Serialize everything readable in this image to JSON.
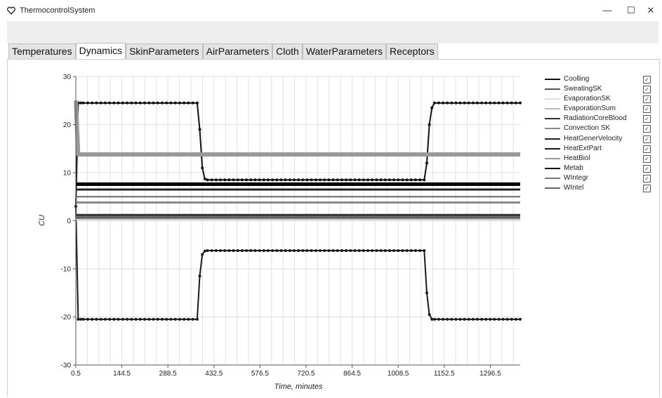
{
  "window": {
    "title": "ThermocontrolSystem",
    "minimize": "—",
    "maximize": "☐",
    "close": "✕"
  },
  "tabs": [
    {
      "label": "Temperatures",
      "active": false
    },
    {
      "label": "Dynamics",
      "active": true
    },
    {
      "label": "SkinParameters",
      "active": false
    },
    {
      "label": "AirParameters",
      "active": false
    },
    {
      "label": "Cloth",
      "active": false
    },
    {
      "label": "WaterParameters",
      "active": false
    },
    {
      "label": "Receptors",
      "active": false
    }
  ],
  "legend": [
    {
      "label": "Coolling",
      "color": "#111111",
      "checked": true
    },
    {
      "label": "SweatingSK",
      "color": "#555555",
      "checked": true
    },
    {
      "label": "EvaporationSK",
      "color": "#dddddd",
      "checked": true
    },
    {
      "label": "EvaporationSum",
      "color": "#bbbbbb",
      "checked": true
    },
    {
      "label": "RadiationCoreBlood",
      "color": "#333333",
      "checked": true
    },
    {
      "label": "Convection SK",
      "color": "#888888",
      "checked": true
    },
    {
      "label": "HeatGenerVelocity",
      "color": "#222222",
      "checked": true
    },
    {
      "label": "HeatExtPart",
      "color": "#1a1a1a",
      "checked": true
    },
    {
      "label": "HeatBiol",
      "color": "#999999",
      "checked": true
    },
    {
      "label": "Metab",
      "color": "#000000",
      "checked": true
    },
    {
      "label": "WIntegr",
      "color": "#777777",
      "checked": true
    },
    {
      "label": "WIntel",
      "color": "#666666",
      "checked": true
    }
  ],
  "chart_data": {
    "type": "line",
    "xlabel": "Time, minutes",
    "ylabel": "CU",
    "xlim": [
      0.5,
      1390
    ],
    "ylim": [
      -30,
      30
    ],
    "x_ticks": [
      "0.5",
      "144.5",
      "288.5",
      "432.5",
      "576.5",
      "720.5",
      "864.5",
      "1008.5",
      "1152.5",
      "1296.5"
    ],
    "y_ticks": [
      "30",
      "20",
      "10",
      "0",
      "-10",
      "-20",
      "-30"
    ],
    "grid": true,
    "legend_position": "right",
    "series": [
      {
        "name": "Coolling",
        "color": "#111111",
        "width": 2,
        "marker": true,
        "x": [
          0.5,
          8,
          16,
          24,
          380,
          388,
          396,
          404,
          412,
          1090,
          1098,
          1106,
          1114,
          1122,
          1390
        ],
        "y": [
          3,
          24.5,
          24.5,
          24.5,
          24.5,
          19,
          11,
          8.7,
          8.5,
          8.5,
          12,
          20,
          23.5,
          24.5,
          24.5
        ]
      },
      {
        "name": "HeatExtPart",
        "color": "#1a1a1a",
        "width": 2,
        "marker": true,
        "x": [
          0.5,
          8,
          16,
          24,
          380,
          388,
          396,
          404,
          412,
          1090,
          1098,
          1106,
          1114,
          1122,
          1390
        ],
        "y": [
          3,
          -20.5,
          -20.5,
          -20.5,
          -20.5,
          -11.5,
          -7,
          -6.3,
          -6.2,
          -6.2,
          -15,
          -19.5,
          -20.5,
          -20.5,
          -20.5
        ]
      },
      {
        "name": "HeatBiol",
        "color": "#999999",
        "width": 6,
        "marker": false,
        "x": [
          0.5,
          8,
          1390
        ],
        "y": [
          25,
          13.8,
          13.8
        ]
      },
      {
        "name": "Metab",
        "color": "#000000",
        "width": 5,
        "marker": false,
        "x": [
          0.5,
          8,
          1390
        ],
        "y": [
          7.6,
          7.6,
          7.6
        ]
      },
      {
        "name": "HeatGenerVelocity",
        "color": "#222222",
        "width": 3,
        "marker": false,
        "x": [
          0.5,
          8,
          1390
        ],
        "y": [
          6.5,
          6.5,
          6.5
        ]
      },
      {
        "name": "Convection SK",
        "color": "#888888",
        "width": 3,
        "marker": false,
        "x": [
          0.5,
          8,
          1390
        ],
        "y": [
          4,
          3.8,
          3.8
        ]
      },
      {
        "name": "WIntegr",
        "color": "#777777",
        "width": 6,
        "marker": false,
        "x": [
          0.5,
          8,
          1390
        ],
        "y": [
          0.9,
          0.9,
          0.9
        ]
      },
      {
        "name": "RadiationCoreBlood",
        "color": "#333333",
        "width": 3,
        "marker": false,
        "x": [
          0.5,
          8,
          1390
        ],
        "y": [
          1.2,
          1.2,
          1.2
        ]
      },
      {
        "name": "EvaporationSum",
        "color": "#bbbbbb",
        "width": 4,
        "marker": false,
        "x": [
          0.5,
          8,
          1390
        ],
        "y": [
          0.3,
          0.3,
          0.3
        ]
      },
      {
        "name": "EvaporationSK",
        "color": "#dddddd",
        "width": 2,
        "marker": false,
        "x": [
          0.5,
          8,
          1390
        ],
        "y": [
          0.1,
          0.1,
          0.1
        ]
      },
      {
        "name": "SweatingSK",
        "color": "#555555",
        "width": 2,
        "marker": false,
        "x": [
          0.5,
          8,
          1390
        ],
        "y": [
          0.6,
          0.6,
          0.6
        ]
      },
      {
        "name": "WIntel",
        "color": "#666666",
        "width": 2,
        "marker": false,
        "x": [
          0.5,
          8,
          1390
        ],
        "y": [
          5,
          5,
          5
        ]
      }
    ]
  }
}
